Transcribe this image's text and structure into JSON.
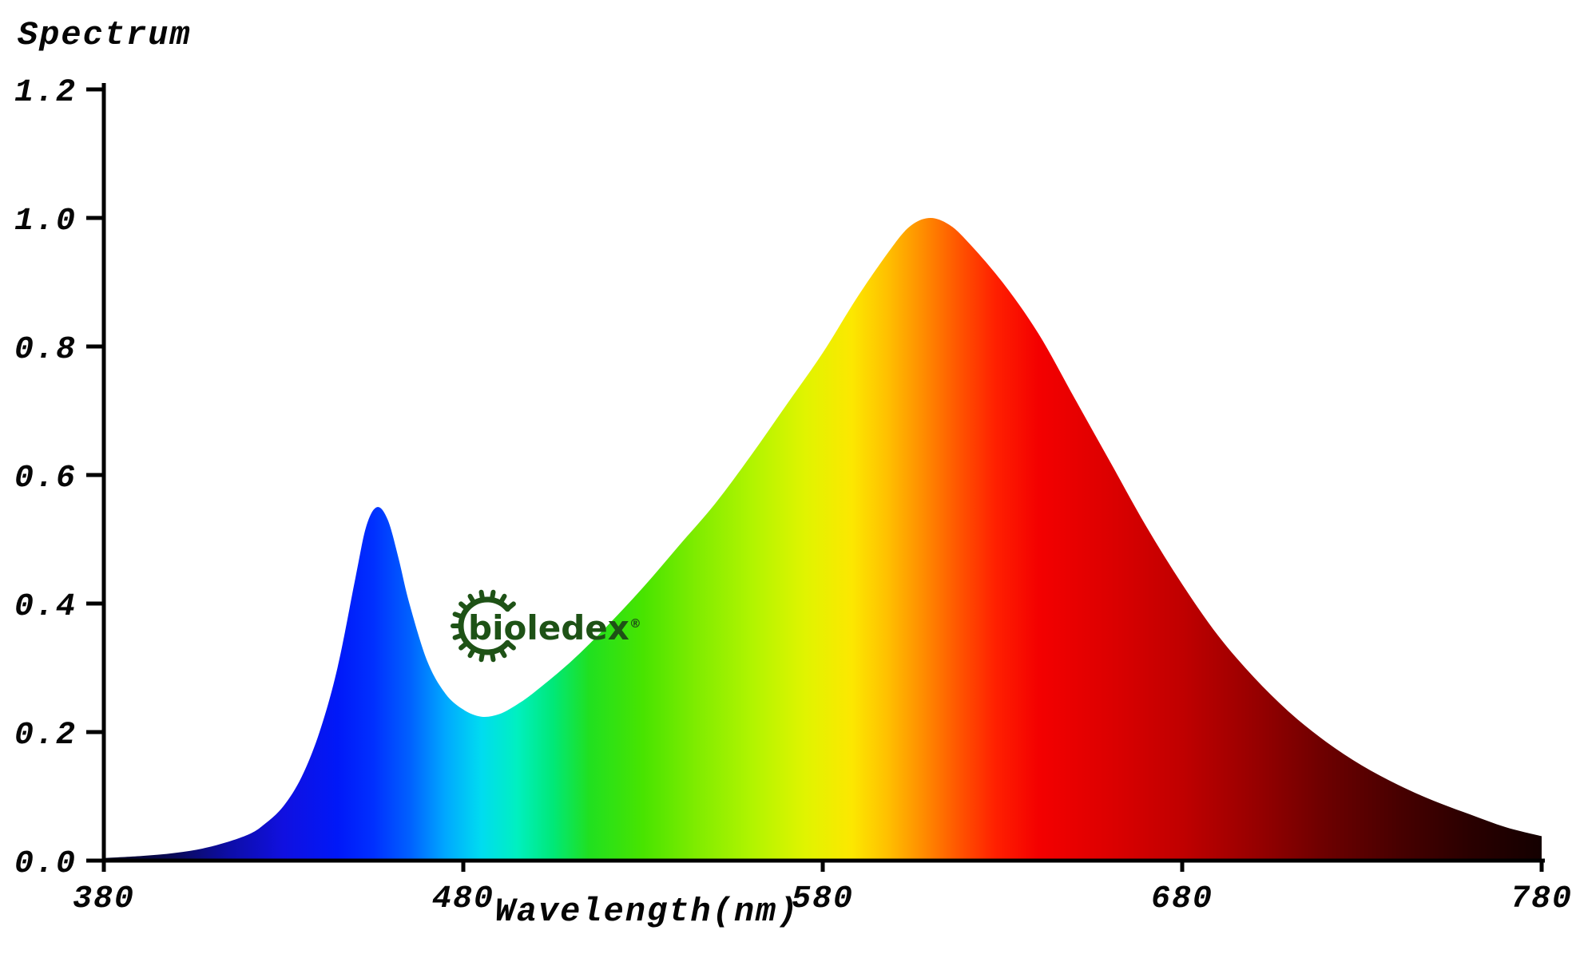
{
  "background": "#ffffff",
  "axis_color": "#000000",
  "chart_data": {
    "type": "area",
    "title": "Spectrum",
    "xlabel": "Wavelength(nm)",
    "ylabel": "",
    "xlim": [
      380,
      780
    ],
    "ylim": [
      0.0,
      1.2
    ],
    "x_ticks": [
      "380",
      "480",
      "580",
      "680",
      "780"
    ],
    "y_ticks": [
      "0.0",
      "0.2",
      "0.4",
      "0.6",
      "0.8",
      "1.0",
      "1.2"
    ],
    "grid": false,
    "legend": "none",
    "series": [
      {
        "name": "LED emission spectrum",
        "fill": "spectral-gradient",
        "x": [
          380,
          390,
          400,
          410,
          420,
          425,
          430,
          435,
          440,
          445,
          450,
          453,
          456,
          459,
          462,
          465,
          470,
          475,
          480,
          485,
          490,
          495,
          500,
          510,
          520,
          530,
          540,
          550,
          560,
          570,
          580,
          590,
          600,
          605,
          610,
          615,
          620,
          630,
          640,
          650,
          660,
          670,
          680,
          690,
          700,
          710,
          720,
          730,
          740,
          750,
          760,
          770,
          780
        ],
        "y": [
          0.004,
          0.007,
          0.012,
          0.022,
          0.04,
          0.058,
          0.085,
          0.13,
          0.2,
          0.3,
          0.44,
          0.52,
          0.55,
          0.53,
          0.47,
          0.4,
          0.31,
          0.26,
          0.235,
          0.224,
          0.228,
          0.243,
          0.263,
          0.31,
          0.365,
          0.425,
          0.49,
          0.555,
          0.63,
          0.71,
          0.79,
          0.88,
          0.96,
          0.99,
          1.0,
          0.99,
          0.965,
          0.9,
          0.82,
          0.72,
          0.62,
          0.52,
          0.43,
          0.35,
          0.285,
          0.23,
          0.185,
          0.148,
          0.118,
          0.093,
          0.072,
          0.052,
          0.038
        ]
      }
    ],
    "features": {
      "blue_peak": {
        "wavelength": 456,
        "intensity": 0.55
      },
      "valley": {
        "wavelength": 485,
        "intensity": 0.22
      },
      "main_peak": {
        "wavelength": 610,
        "intensity": 1.0
      }
    },
    "spectral_gradient_stops": [
      [
        380,
        "#05051f"
      ],
      [
        400,
        "#0a0a5a"
      ],
      [
        415,
        "#0d0da8"
      ],
      [
        430,
        "#1010e0"
      ],
      [
        445,
        "#0018f8"
      ],
      [
        455,
        "#0030ff"
      ],
      [
        465,
        "#0060ff"
      ],
      [
        475,
        "#00a8ff"
      ],
      [
        485,
        "#00dcf0"
      ],
      [
        495,
        "#00f0c0"
      ],
      [
        505,
        "#00e878"
      ],
      [
        515,
        "#20e020"
      ],
      [
        530,
        "#48e400"
      ],
      [
        545,
        "#80ec00"
      ],
      [
        560,
        "#b0f400"
      ],
      [
        575,
        "#e0f400"
      ],
      [
        588,
        "#fce800"
      ],
      [
        598,
        "#ffc000"
      ],
      [
        608,
        "#ff8c00"
      ],
      [
        618,
        "#ff5400"
      ],
      [
        628,
        "#ff2000"
      ],
      [
        640,
        "#f40000"
      ],
      [
        660,
        "#dc0000"
      ],
      [
        680,
        "#c00000"
      ],
      [
        700,
        "#980000"
      ],
      [
        720,
        "#6c0000"
      ],
      [
        740,
        "#480000"
      ],
      [
        760,
        "#2a0000"
      ],
      [
        780,
        "#140000"
      ]
    ]
  },
  "watermark": {
    "text": "bioledex",
    "registered_mark": "®",
    "color": "#1e5216"
  }
}
